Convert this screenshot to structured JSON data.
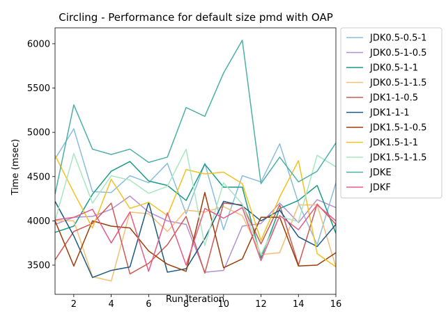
{
  "chart_data": {
    "type": "line",
    "title": "Circling - Performance for default size pmd with OAP",
    "xlabel": "Run Iteration",
    "ylabel": "Time (msec)",
    "xlim": [
      1,
      16
    ],
    "ylim": [
      3170,
      6180
    ],
    "xticks": [
      2,
      4,
      6,
      8,
      10,
      12,
      14,
      16
    ],
    "yticks": [
      3500,
      4000,
      4500,
      5000,
      5500,
      6000
    ],
    "grid": false,
    "legend_position": "outside-right",
    "x": [
      1,
      2,
      3,
      4,
      5,
      6,
      7,
      8,
      9,
      10,
      11,
      12,
      13,
      14,
      15,
      16
    ],
    "series": [
      {
        "name": "JDK0.5-0.5-1",
        "color": "#88bde0",
        "values": [
          4700,
          5040,
          4330,
          4320,
          4510,
          4430,
          4650,
          4080,
          4650,
          3900,
          4510,
          4440,
          4870,
          4200,
          3730,
          4430
        ]
      },
      {
        "name": "JDK0.5-1-0.5",
        "color": "#b28fd5",
        "values": [
          3960,
          4040,
          4050,
          4130,
          4280,
          4100,
          4000,
          3960,
          3420,
          3440,
          3940,
          3970,
          4200,
          3980,
          4240,
          4150
        ]
      },
      {
        "name": "JDK0.5-1-1",
        "color": "#1a9b86",
        "values": [
          3870,
          3940,
          4300,
          4560,
          4670,
          4450,
          4400,
          4230,
          4640,
          4380,
          4380,
          3580,
          4140,
          4230,
          4400,
          3860
        ]
      },
      {
        "name": "JDK0.5-1-1.5",
        "color": "#f6be73",
        "values": [
          4000,
          4000,
          3370,
          3320,
          4100,
          4080,
          3880,
          4120,
          4100,
          4160,
          4060,
          3620,
          3640,
          4180,
          4180,
          3480
        ]
      },
      {
        "name": "JDK1-1-0.5",
        "color": "#cc5a53",
        "values": [
          3560,
          3880,
          3970,
          4200,
          3400,
          3520,
          3730,
          4050,
          3410,
          4200,
          4180,
          3740,
          4180,
          3500,
          4190,
          3960
        ]
      },
      {
        "name": "JDK1-1-1",
        "color": "#1a5a80",
        "values": [
          4220,
          3830,
          3360,
          3440,
          3480,
          4210,
          3420,
          3460,
          3800,
          4220,
          4170,
          4000,
          4120,
          3820,
          3710,
          3960
        ]
      },
      {
        "name": "JDK1.5-1-0.5",
        "color": "#9b3d07",
        "values": [
          4000,
          3490,
          4000,
          3940,
          3920,
          3660,
          3510,
          3430,
          4320,
          3470,
          3570,
          4040,
          4040,
          3490,
          3500,
          3640
        ]
      },
      {
        "name": "JDK1.5-1-1",
        "color": "#f3c11f",
        "values": [
          4740,
          4320,
          3920,
          4470,
          4140,
          4210,
          4060,
          4580,
          4530,
          4550,
          4420,
          3780,
          4270,
          4680,
          3630,
          3480
        ]
      },
      {
        "name": "JDK1.5-1-1.5",
        "color": "#a8e6c2",
        "values": [
          4000,
          4760,
          4200,
          4510,
          4460,
          4310,
          4390,
          4810,
          3720,
          4430,
          4190,
          3620,
          4050,
          3990,
          4740,
          4610
        ]
      },
      {
        "name": "JDKE",
        "color": "#4cb0a6",
        "values": [
          4300,
          5310,
          4810,
          4750,
          4810,
          4660,
          4720,
          5280,
          5180,
          5670,
          6040,
          4420,
          4720,
          4440,
          4560,
          4880
        ]
      },
      {
        "name": "JDKF",
        "color": "#e85a86",
        "values": [
          4010,
          4040,
          4130,
          3750,
          4100,
          3430,
          4090,
          3500,
          4140,
          4030,
          4150,
          3550,
          4060,
          3900,
          4180,
          4000
        ]
      }
    ]
  }
}
